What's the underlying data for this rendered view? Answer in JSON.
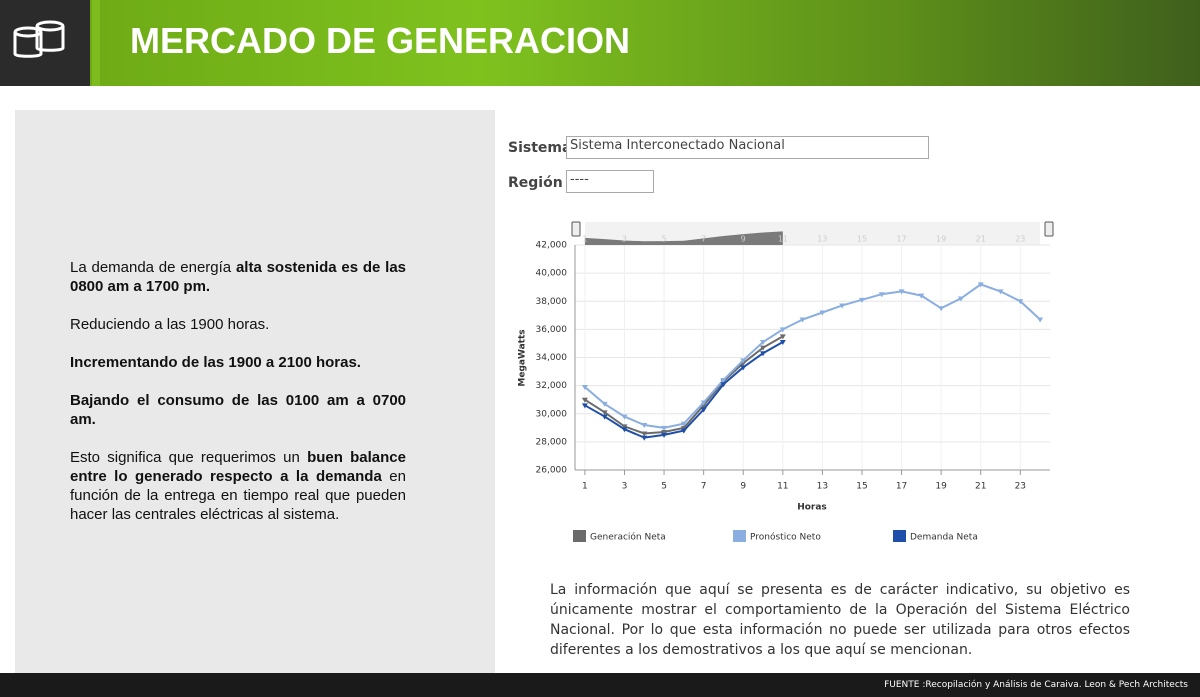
{
  "header": {
    "title": "MERCADO DE GENERACION"
  },
  "left_text": {
    "paragraphs": [
      [
        {
          "text": "La demanda de energía ",
          "bold": false
        },
        {
          "text": "alta sostenida es de las 0800 am a 1700 pm.",
          "bold": true
        }
      ],
      [
        {
          "text": "Reduciendo a las 1900 horas.",
          "bold": false
        }
      ],
      [
        {
          "text": "Incrementando de las 1900 a 2100 horas.",
          "bold": true
        }
      ],
      [
        {
          "text": "Bajando el consumo de las 0100 am a 0700 am.",
          "bold": true
        }
      ],
      [
        {
          "text": "Esto significa que requerimos un ",
          "bold": false
        },
        {
          "text": "buen balance entre lo generado respecto a la demanda",
          "bold": true
        },
        {
          "text": " en función de la entrega en tiempo real que pueden hacer las centrales eléctricas al sistema.",
          "bold": false
        }
      ]
    ]
  },
  "filters": {
    "sistema_label": "Sistema",
    "sistema_value": "Sistema Interconectado Nacional",
    "region_label": "Región",
    "region_value": "----"
  },
  "chart_data": {
    "type": "line",
    "x_label": "Horas",
    "y_label": "MegaWatts",
    "x": [
      1,
      2,
      3,
      4,
      5,
      6,
      7,
      8,
      9,
      10,
      11,
      12,
      13,
      14,
      15,
      16,
      17,
      18,
      19,
      20,
      21,
      22,
      23,
      24
    ],
    "xlim": [
      0.5,
      24.5
    ],
    "xticks": [
      1,
      3,
      5,
      7,
      9,
      11,
      13,
      15,
      17,
      19,
      21,
      23
    ],
    "ylim": [
      26000,
      42000
    ],
    "yticks": [
      {
        "value": 26000,
        "label": "26,000"
      },
      {
        "value": 28000,
        "label": "28,000"
      },
      {
        "value": 30000,
        "label": "30,000"
      },
      {
        "value": 32000,
        "label": "32,000"
      },
      {
        "value": 34000,
        "label": "34,000"
      },
      {
        "value": 36000,
        "label": "36,000"
      },
      {
        "value": 38000,
        "label": "38,000"
      },
      {
        "value": 40000,
        "label": "40,000"
      },
      {
        "value": 42000,
        "label": "42,000"
      }
    ],
    "grid": true,
    "series": [
      {
        "name": "Generación Neta",
        "color": "#6b6b6b",
        "values": [
          31000,
          30100,
          29100,
          28600,
          28700,
          29000,
          30600,
          32300,
          33600,
          34700,
          35500,
          null,
          null,
          null,
          null,
          null,
          null,
          null,
          null,
          null,
          null,
          null,
          null,
          null
        ]
      },
      {
        "name": "Pronóstico Neto",
        "color": "#8aaee0",
        "values": [
          31900,
          30700,
          29800,
          29200,
          29000,
          29300,
          30800,
          32400,
          33800,
          35100,
          36000,
          36700,
          37200,
          37700,
          38100,
          38500,
          38700,
          38400,
          37500,
          38200,
          39200,
          38700,
          38000,
          36700
        ]
      },
      {
        "name": "Demanda Neta",
        "color": "#1f4fa8",
        "values": [
          30600,
          29800,
          28900,
          28300,
          28500,
          28800,
          30300,
          32100,
          33300,
          34300,
          35100,
          null,
          null,
          null,
          null,
          null,
          null,
          null,
          null,
          null,
          null,
          null,
          null,
          null
        ]
      }
    ]
  },
  "disclaimer": "La información que aquí se presenta es de carácter indicativo, su objetivo es únicamente mostrar el comportamiento de la Operación del Sistema Eléctrico Nacional. Por lo que esta información no puede ser utilizada para otros efectos diferentes a los demostrativos a los que aquí se mencionan.",
  "footer": "FUENTE :Recopilación y Análisis de Caraiva. Leon & Pech Architects"
}
